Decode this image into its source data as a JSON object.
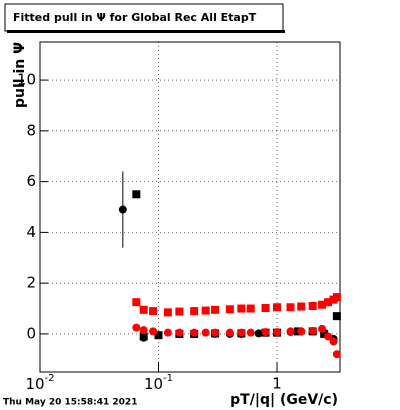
{
  "chart_data": {
    "type": "scatter",
    "title": "Fitted pull in  Ψ  for Global Rec All EtapT",
    "x_label": "pT/|q| (GeV/c)",
    "y_label": "pull in  Ψ",
    "timestamp": "Thu May 20 15:58:41 2021",
    "log_x": true,
    "grid": true,
    "xlim": [
      0.01,
      3.4
    ],
    "ylim": [
      -1.5,
      11.5
    ],
    "xticks": [
      {
        "value": 0.01,
        "label": "10",
        "exponent": "-2"
      },
      {
        "value": 0.1,
        "label": "10",
        "exponent": "-1"
      },
      1
    ],
    "yticks": [
      0,
      2,
      4,
      6,
      8,
      10
    ],
    "series": [
      {
        "color": "#000000",
        "marker": "circle",
        "x": [
          0.05,
          0.075,
          0.1,
          0.15,
          0.2,
          0.3,
          0.4,
          0.5,
          0.7,
          1.0,
          1.3,
          1.6,
          2.0,
          2.5,
          3.0
        ],
        "values": [
          4.9,
          -0.15,
          -0.05,
          0.0,
          0.0,
          0.0,
          0.0,
          0.0,
          0.02,
          0.05,
          0.08,
          0.1,
          0.1,
          0.05,
          -0.2
        ],
        "errors": [
          1.5,
          0.05,
          0.05,
          0.05,
          0.05,
          0.05,
          0.05,
          0.05,
          0.05,
          0.05,
          0.05,
          0.05,
          0.05,
          0.05,
          0.1
        ]
      },
      {
        "color": "#000000",
        "marker": "square",
        "x": [
          0.065,
          0.075,
          0.1,
          0.15,
          0.2,
          0.3,
          0.5,
          0.8,
          1.0,
          1.5,
          2.0,
          2.5,
          3.2
        ],
        "values": [
          5.5,
          -0.1,
          -0.05,
          0.0,
          0.0,
          0.02,
          0.02,
          0.05,
          0.05,
          0.1,
          0.1,
          0.0,
          0.7
        ]
      },
      {
        "color": "#ff0000",
        "marker": "square",
        "x": [
          0.065,
          0.075,
          0.09,
          0.12,
          0.15,
          0.2,
          0.25,
          0.3,
          0.4,
          0.5,
          0.6,
          0.8,
          1.0,
          1.3,
          1.6,
          2.0,
          2.4,
          2.7,
          3.0,
          3.2
        ],
        "values": [
          1.25,
          0.95,
          0.9,
          0.85,
          0.88,
          0.9,
          0.92,
          0.95,
          0.97,
          1.0,
          1.0,
          1.02,
          1.05,
          1.05,
          1.08,
          1.1,
          1.15,
          1.25,
          1.35,
          1.45
        ]
      },
      {
        "color": "#ff0000",
        "marker": "circle",
        "x": [
          0.065,
          0.075,
          0.09,
          0.12,
          0.15,
          0.2,
          0.25,
          0.3,
          0.4,
          0.5,
          0.6,
          0.8,
          1.0,
          1.3,
          1.6,
          2.0,
          2.4,
          2.7,
          3.0,
          3.2
        ],
        "values": [
          0.25,
          0.15,
          0.1,
          0.05,
          0.05,
          0.05,
          0.05,
          0.05,
          0.05,
          0.05,
          0.05,
          0.07,
          0.07,
          0.1,
          0.1,
          0.12,
          0.2,
          -0.1,
          -0.3,
          -0.8
        ]
      }
    ]
  }
}
